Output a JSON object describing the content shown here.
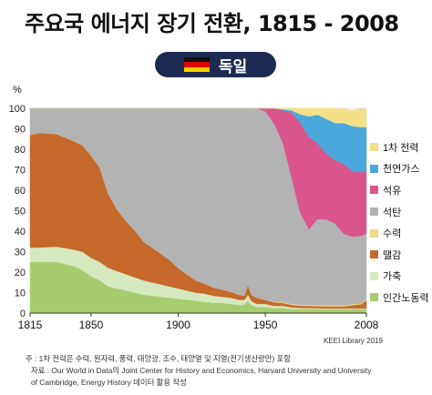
{
  "title": "주요국 에너지 장기 전환, 1815 - 2008",
  "country_badge": {
    "label": "독일",
    "flag_colors": [
      "#111111",
      "#dd0000",
      "#ffce00"
    ]
  },
  "credit": "KEEI Library 2019",
  "notes": [
    "주 : 1차 전력은 수력, 원자력, 풍력, 태양광, 조수, 태양열 및 지열(전기생산량만) 포함",
    "자료 : Our World in Data의 Joint Center for History and Economics, Harvard University and University",
    "of Cambridge, Energy History 데이터 활용 작성"
  ],
  "chart_data": {
    "type": "area",
    "stacked": true,
    "ylabel": "%",
    "ylim": [
      0,
      100
    ],
    "xlim": [
      1815,
      2008
    ],
    "yticks": [
      0,
      10,
      20,
      30,
      40,
      50,
      60,
      70,
      80,
      90,
      100
    ],
    "xticks": [
      1815,
      1850,
      1900,
      1950,
      2008
    ],
    "grid": "horizontal",
    "legend_position": "right",
    "x": [
      1815,
      1820,
      1830,
      1840,
      1845,
      1850,
      1855,
      1860,
      1865,
      1870,
      1875,
      1880,
      1885,
      1890,
      1895,
      1900,
      1905,
      1910,
      1915,
      1920,
      1925,
      1930,
      1935,
      1938,
      1940,
      1942,
      1945,
      1950,
      1955,
      1960,
      1965,
      1970,
      1975,
      1980,
      1985,
      1990,
      1995,
      2000,
      2005,
      2008
    ],
    "series": [
      {
        "name": "인간노동력",
        "color": "#a7cc6f",
        "values": [
          25,
          25,
          25,
          23,
          21,
          18,
          16,
          13,
          12,
          11,
          10,
          9,
          8.5,
          8,
          7.5,
          7,
          6.5,
          6,
          5.5,
          5,
          5,
          4.5,
          4,
          4,
          6,
          4,
          3,
          3,
          2.5,
          2.5,
          2,
          2,
          2,
          2,
          2,
          2,
          2,
          2,
          2,
          2
        ]
      },
      {
        "name": "가축",
        "color": "#d6e8bd",
        "values": [
          7,
          7,
          7.5,
          8,
          9,
          9,
          9,
          9,
          8.5,
          8,
          7.5,
          7,
          6.5,
          6,
          5.5,
          5,
          4.5,
          4,
          4,
          3.5,
          3,
          3,
          2.5,
          2.5,
          3,
          2,
          1.5,
          1.5,
          1,
          1,
          0.8,
          0.6,
          0.5,
          0.4,
          0.3,
          0.3,
          0.3,
          0.3,
          0.3,
          0.3
        ]
      },
      {
        "name": "땔감",
        "color": "#c4692b",
        "values": [
          55,
          56,
          55,
          53,
          52,
          50,
          46,
          36,
          30,
          26,
          23,
          19,
          17,
          15,
          13,
          10,
          8,
          6,
          5,
          4,
          3.5,
          3,
          2.5,
          2,
          5,
          3,
          3,
          2,
          1.8,
          1.5,
          1.2,
          1,
          1,
          1,
          1,
          1,
          1,
          1.5,
          2,
          4
        ]
      },
      {
        "name": "수력",
        "color": "#f5d78a",
        "values": [
          0,
          0,
          0,
          0,
          0,
          0,
          0,
          0,
          0,
          0,
          0,
          0,
          0,
          0,
          0,
          0,
          0,
          0,
          0,
          0,
          0,
          0,
          0,
          0,
          0,
          0,
          0,
          0,
          0.3,
          0.4,
          0.5,
          0.5,
          0.5,
          0.5,
          0.5,
          0.5,
          0.5,
          0.5,
          0.5,
          0.5
        ]
      },
      {
        "name": "석탄",
        "color": "#b3b3b3",
        "values": [
          13,
          12,
          12.5,
          16,
          18,
          23,
          29,
          42,
          49.5,
          55,
          59.5,
          65,
          68,
          71,
          74,
          78,
          81,
          84,
          85.5,
          87.5,
          88.5,
          89.5,
          91,
          91.5,
          86,
          91,
          92.5,
          92,
          87,
          78,
          62,
          45,
          37,
          42,
          42,
          40,
          35,
          33,
          33,
          32
        ]
      },
      {
        "name": "석유",
        "color": "#d9558c",
        "values": [
          0,
          0,
          0,
          0,
          0,
          0,
          0,
          0,
          0,
          0,
          0,
          0,
          0,
          0,
          0,
          0,
          0,
          0,
          0,
          0,
          0,
          0,
          0,
          0,
          0,
          0,
          0,
          1.5,
          7.4,
          15.6,
          31.5,
          44,
          45,
          37,
          32,
          31,
          34,
          32,
          31,
          31
        ]
      },
      {
        "name": "천연가스",
        "color": "#4aa8dc",
        "values": [
          0,
          0,
          0,
          0,
          0,
          0,
          0,
          0,
          0,
          0,
          0,
          0,
          0,
          0,
          0,
          0,
          0,
          0,
          0,
          0,
          0,
          0,
          0,
          0,
          0,
          0,
          0,
          0,
          0,
          0.5,
          1,
          4,
          10,
          14,
          17,
          18,
          20,
          22,
          22,
          21
        ]
      },
      {
        "name": "1차 전력",
        "color": "#f3e089",
        "values": [
          0,
          0,
          0,
          0,
          0,
          0,
          0,
          0,
          0,
          0,
          0,
          0,
          0,
          0,
          0,
          0,
          0,
          0,
          0,
          0,
          0,
          0,
          0,
          0,
          0,
          0,
          0,
          0,
          0,
          0.5,
          1,
          2.9,
          4,
          3.1,
          5.2,
          7.2,
          7.2,
          7.7,
          9.2,
          8.9
        ]
      }
    ]
  }
}
